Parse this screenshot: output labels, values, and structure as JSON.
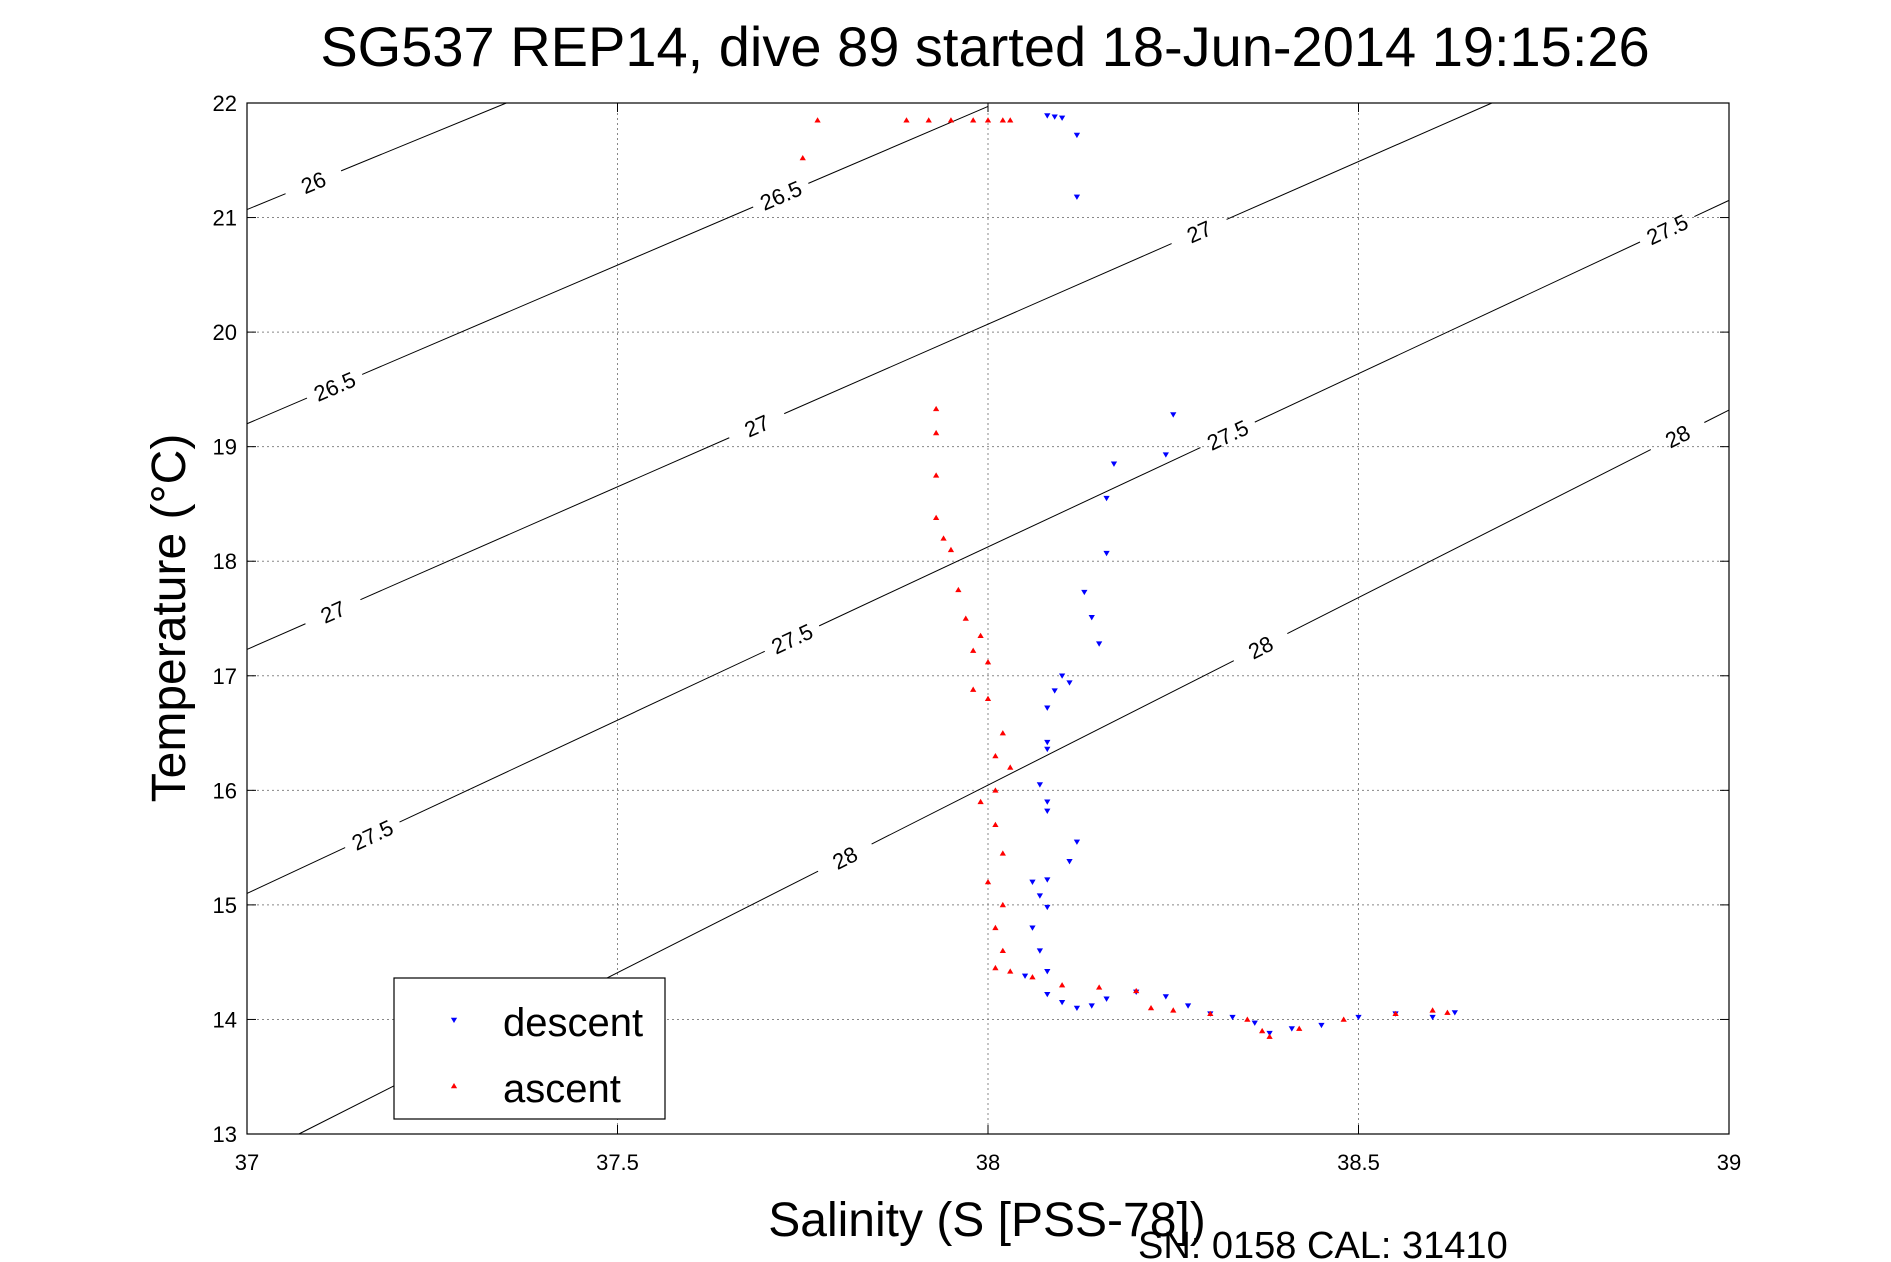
{
  "chart_data": {
    "type": "scatter",
    "title": "SG537 REP14, dive 89 started 18-Jun-2014 19:15:26",
    "xlabel": "Salinity (S [PSS-78])",
    "ylabel": "Temperature (°C)",
    "xlim": [
      37,
      39
    ],
    "ylim": [
      13,
      22
    ],
    "xticks": [
      "37",
      "37.5",
      "38",
      "38.5",
      "39"
    ],
    "yticks": [
      "13",
      "14",
      "15",
      "16",
      "17",
      "18",
      "19",
      "20",
      "21",
      "22"
    ],
    "grid": true,
    "legend_position": "bottom-left",
    "footer": "SN: 0158  CAL: 31410",
    "contours": [
      {
        "label": "26",
        "points": [
          [
            37.0,
            21.07
          ],
          [
            37.35,
            22.0
          ]
        ],
        "label_positions": [
          [
            37.09,
            21.3
          ]
        ]
      },
      {
        "label": "26.5",
        "points": [
          [
            37.0,
            19.2
          ],
          [
            38.0,
            21.97
          ]
        ],
        "label_positions": [
          [
            37.12,
            19.5
          ],
          [
            37.72,
            21.2
          ]
        ]
      },
      {
        "label": "27",
        "points": [
          [
            37.0,
            17.23
          ],
          [
            38.68,
            22.0
          ]
        ],
        "label_positions": [
          [
            37.12,
            17.5
          ],
          [
            37.68,
            19.3
          ],
          [
            38.28,
            20.95
          ]
        ]
      },
      {
        "label": "27.5",
        "points": [
          [
            37.0,
            15.1
          ],
          [
            39.0,
            21.15
          ]
        ],
        "label_positions": [
          [
            37.17,
            15.6
          ],
          [
            37.73,
            17.4
          ],
          [
            38.32,
            19.15
          ],
          [
            38.92,
            20.85
          ]
        ]
      },
      {
        "label": "28",
        "points": [
          [
            37.07,
            13.0
          ],
          [
            39.0,
            19.32
          ]
        ],
        "label_positions": [
          [
            37.8,
            15.5
          ],
          [
            38.36,
            17.35
          ],
          [
            38.93,
            19.1
          ]
        ]
      }
    ],
    "series": [
      {
        "name": "descent",
        "color": "#0000ff",
        "marker": "triangle-down",
        "points": [
          [
            38.08,
            21.89
          ],
          [
            38.09,
            21.88
          ],
          [
            38.1,
            21.87
          ],
          [
            38.12,
            21.72
          ],
          [
            38.12,
            21.18
          ],
          [
            38.25,
            19.28
          ],
          [
            38.24,
            18.93
          ],
          [
            38.17,
            18.85
          ],
          [
            38.16,
            18.55
          ],
          [
            38.16,
            18.07
          ],
          [
            38.13,
            17.73
          ],
          [
            38.14,
            17.51
          ],
          [
            38.15,
            17.28
          ],
          [
            38.1,
            17.0
          ],
          [
            38.11,
            16.94
          ],
          [
            38.09,
            16.87
          ],
          [
            38.08,
            16.72
          ],
          [
            38.08,
            16.42
          ],
          [
            38.08,
            16.36
          ],
          [
            38.07,
            16.05
          ],
          [
            38.08,
            15.9
          ],
          [
            38.08,
            15.82
          ],
          [
            38.12,
            15.55
          ],
          [
            38.11,
            15.38
          ],
          [
            38.08,
            15.22
          ],
          [
            38.06,
            15.2
          ],
          [
            38.07,
            15.08
          ],
          [
            38.08,
            14.98
          ],
          [
            38.06,
            14.8
          ],
          [
            38.07,
            14.6
          ],
          [
            38.08,
            14.42
          ],
          [
            38.05,
            14.38
          ],
          [
            38.08,
            14.22
          ],
          [
            38.1,
            14.15
          ],
          [
            38.12,
            14.1
          ],
          [
            38.14,
            14.12
          ],
          [
            38.16,
            14.18
          ],
          [
            38.2,
            14.24
          ],
          [
            38.24,
            14.2
          ],
          [
            38.27,
            14.12
          ],
          [
            38.3,
            14.05
          ],
          [
            38.33,
            14.02
          ],
          [
            38.36,
            13.97
          ],
          [
            38.38,
            13.88
          ],
          [
            38.41,
            13.92
          ],
          [
            38.45,
            13.95
          ],
          [
            38.5,
            14.02
          ],
          [
            38.55,
            14.05
          ],
          [
            38.6,
            14.02
          ],
          [
            38.63,
            14.06
          ]
        ]
      },
      {
        "name": "ascent",
        "color": "#ff0000",
        "marker": "triangle-up",
        "points": [
          [
            37.75,
            21.52
          ],
          [
            37.77,
            21.85
          ],
          [
            37.89,
            21.85
          ],
          [
            37.92,
            21.85
          ],
          [
            37.95,
            21.85
          ],
          [
            37.98,
            21.85
          ],
          [
            38.0,
            21.85
          ],
          [
            38.02,
            21.85
          ],
          [
            38.03,
            21.85
          ],
          [
            37.93,
            19.33
          ],
          [
            37.93,
            19.12
          ],
          [
            37.93,
            18.75
          ],
          [
            37.93,
            18.38
          ],
          [
            37.94,
            18.2
          ],
          [
            37.95,
            18.1
          ],
          [
            37.96,
            17.75
          ],
          [
            37.97,
            17.5
          ],
          [
            37.99,
            17.35
          ],
          [
            37.98,
            17.22
          ],
          [
            38.0,
            17.12
          ],
          [
            37.98,
            16.88
          ],
          [
            38.0,
            16.8
          ],
          [
            38.02,
            16.5
          ],
          [
            38.01,
            16.3
          ],
          [
            38.03,
            16.2
          ],
          [
            38.01,
            16.0
          ],
          [
            37.99,
            15.9
          ],
          [
            38.01,
            15.7
          ],
          [
            38.02,
            15.45
          ],
          [
            38.0,
            15.2
          ],
          [
            38.02,
            15.0
          ],
          [
            38.01,
            14.8
          ],
          [
            38.02,
            14.6
          ],
          [
            38.01,
            14.45
          ],
          [
            38.03,
            14.42
          ],
          [
            38.06,
            14.37
          ],
          [
            38.1,
            14.3
          ],
          [
            38.15,
            14.28
          ],
          [
            38.2,
            14.25
          ],
          [
            38.22,
            14.1
          ],
          [
            38.25,
            14.08
          ],
          [
            38.3,
            14.05
          ],
          [
            38.35,
            14.0
          ],
          [
            38.37,
            13.9
          ],
          [
            38.38,
            13.85
          ],
          [
            38.42,
            13.92
          ],
          [
            38.48,
            14.0
          ],
          [
            38.55,
            14.05
          ],
          [
            38.6,
            14.08
          ],
          [
            38.62,
            14.06
          ]
        ]
      }
    ]
  }
}
